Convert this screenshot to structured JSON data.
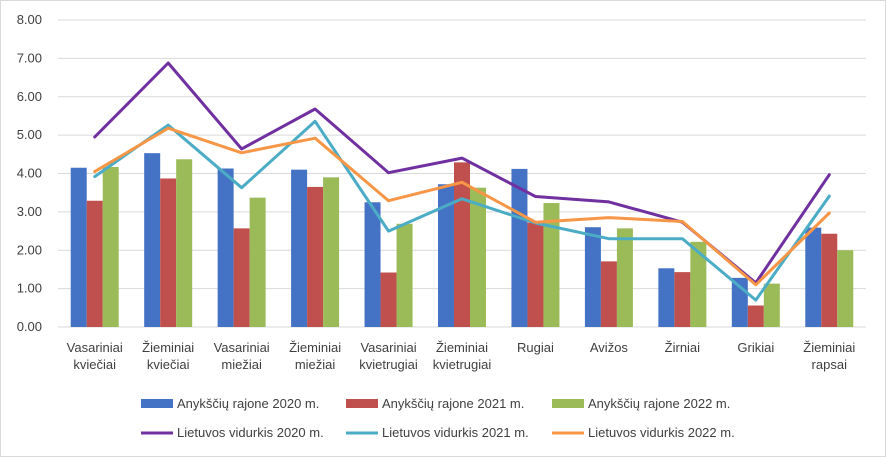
{
  "chart_data": {
    "type": "bar",
    "title": "",
    "xlabel": "",
    "ylabel": "",
    "ylim": [
      0,
      8
    ],
    "yticks": [
      "0.00",
      "1.00",
      "2.00",
      "3.00",
      "4.00",
      "5.00",
      "6.00",
      "7.00",
      "8.00"
    ],
    "grid": true,
    "legend_position": "bottom",
    "categories": [
      [
        "Vasariniai",
        "kviečiai"
      ],
      [
        "Žieminiai",
        "kviečiai"
      ],
      [
        "Vasariniai",
        "miežiai"
      ],
      [
        "Žieminiai",
        "miežiai"
      ],
      [
        "Vasariniai",
        "kvietrugiai"
      ],
      [
        "Žieminiai",
        "kvietrugiai"
      ],
      [
        "Rugiai"
      ],
      [
        "Avižos"
      ],
      [
        "Žirniai"
      ],
      [
        "Grikiai"
      ],
      [
        "Žieminiai",
        "rapsai"
      ]
    ],
    "bar_series": [
      {
        "name": "Anykščių rajone 2020 m.",
        "color": "#4472c4",
        "values": [
          4.15,
          4.53,
          4.13,
          4.1,
          3.25,
          3.72,
          4.12,
          2.6,
          1.53,
          1.28,
          2.59
        ]
      },
      {
        "name": "Anykščių rajone 2021 m.",
        "color": "#c0504d",
        "values": [
          3.29,
          3.87,
          2.57,
          3.65,
          1.42,
          4.29,
          2.72,
          1.71,
          1.43,
          0.56,
          2.43
        ]
      },
      {
        "name": "Anykščių rajone 2022 m.",
        "color": "#9bbb59",
        "values": [
          4.17,
          4.37,
          3.37,
          3.9,
          2.69,
          3.63,
          3.23,
          2.57,
          2.22,
          1.13,
          2.0
        ]
      }
    ],
    "line_series": [
      {
        "name": "Lietuvos vidurkis 2020 m.",
        "color": "#7030a0",
        "values": [
          4.95,
          6.88,
          4.64,
          5.68,
          4.02,
          4.4,
          3.4,
          3.26,
          2.73,
          1.15,
          3.97
        ]
      },
      {
        "name": "Lietuvos vidurkis 2021 m.",
        "color": "#4bacc6",
        "values": [
          3.92,
          5.26,
          3.63,
          5.36,
          2.5,
          3.34,
          2.71,
          2.3,
          2.3,
          0.7,
          3.41
        ]
      },
      {
        "name": "Lietuvos vidurkis 2022 m.",
        "color": "#f79646",
        "values": [
          4.05,
          5.18,
          4.54,
          4.92,
          3.29,
          3.77,
          2.73,
          2.85,
          2.75,
          1.1,
          2.97
        ]
      }
    ]
  }
}
